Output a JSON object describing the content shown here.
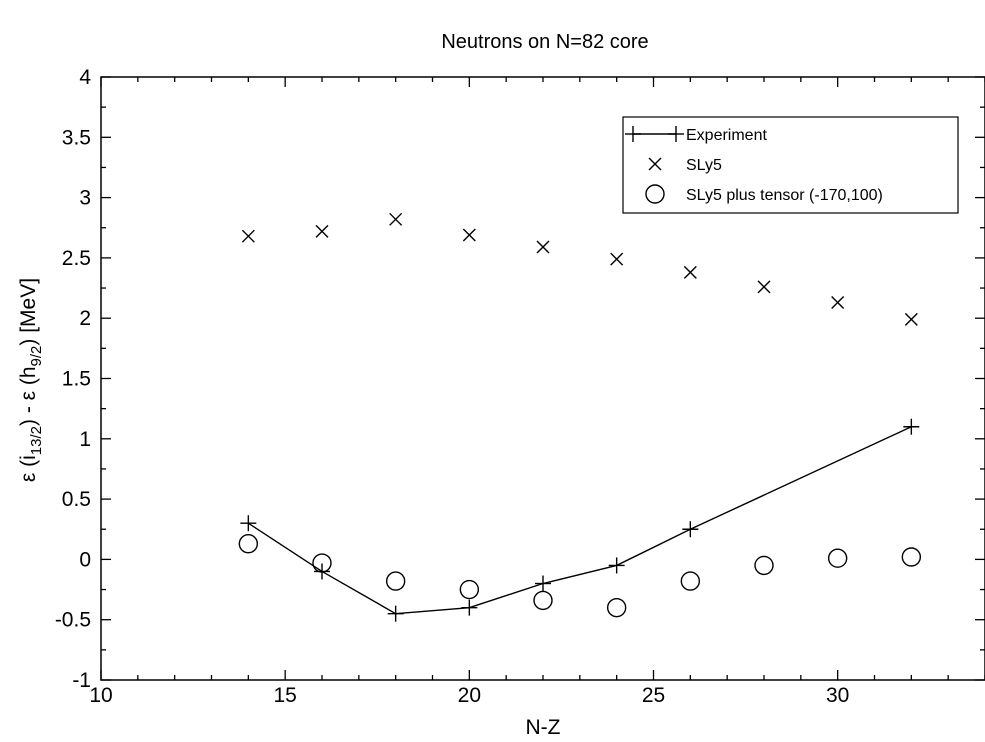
{
  "chart_data": {
    "type": "scatter",
    "title": "Neutrons on N=82 core",
    "xlabel": "N-Z",
    "ylabel": {
      "prefix": "ε (i",
      "sub1": "13/2",
      "middle": ") - ε (h",
      "sub2": "9/2",
      "suffix": ")  [MeV]"
    },
    "xlim": [
      10,
      34
    ],
    "ylim": [
      -1,
      4
    ],
    "xticks": [
      10,
      15,
      20,
      25,
      30
    ],
    "yticks": [
      -1,
      -0.5,
      0,
      0.5,
      1,
      1.5,
      2,
      2.5,
      3,
      3.5,
      4
    ],
    "xtick_labels": [
      "10",
      "15",
      "20",
      "25",
      "30"
    ],
    "ytick_labels": [
      "-1",
      "-0.5",
      "0",
      "0.5",
      "1",
      "1.5",
      "2",
      "2.5",
      "3",
      "3.5",
      "4"
    ],
    "grid": false,
    "legend_position": "top-right",
    "series": [
      {
        "name": "Experiment",
        "marker": "plus",
        "line": true,
        "color": "#000000",
        "x": [
          14,
          16,
          18,
          20,
          22,
          24,
          26,
          32
        ],
        "y": [
          0.3,
          -0.1,
          -0.45,
          -0.4,
          -0.2,
          -0.05,
          0.25,
          1.1
        ]
      },
      {
        "name": "SLy5",
        "marker": "cross",
        "line": false,
        "color": "#000000",
        "x": [
          14,
          16,
          18,
          20,
          22,
          24,
          26,
          28,
          30,
          32
        ],
        "y": [
          2.68,
          2.72,
          2.82,
          2.69,
          2.59,
          2.49,
          2.38,
          2.26,
          2.13,
          1.99
        ]
      },
      {
        "name": "SLy5 plus tensor (-170,100)",
        "marker": "circle",
        "line": false,
        "color": "#000000",
        "x": [
          14,
          16,
          18,
          20,
          22,
          24,
          26,
          28,
          30,
          32
        ],
        "y": [
          0.13,
          -0.03,
          -0.18,
          -0.25,
          -0.34,
          -0.4,
          -0.18,
          -0.05,
          0.01,
          0.02
        ]
      }
    ]
  }
}
